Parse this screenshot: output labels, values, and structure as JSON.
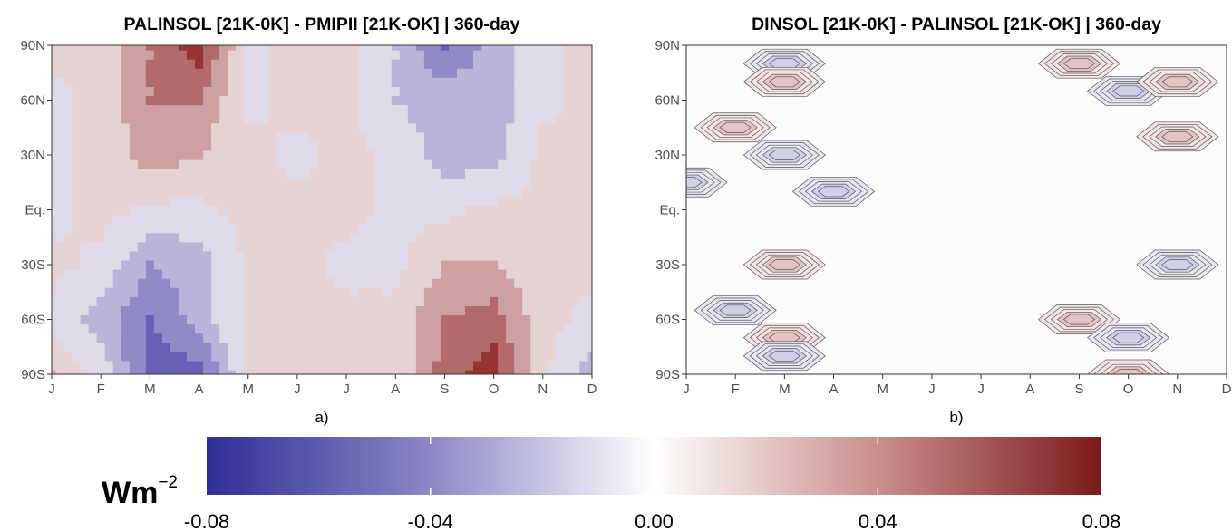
{
  "chart_data": [
    {
      "type": "heatmap",
      "panel": "a)",
      "title": "PALINSOL [21K-0K] - PMIPII [21K-OK] | 360-day",
      "x": [
        "J",
        "F",
        "M",
        "A",
        "M",
        "J",
        "J",
        "A",
        "S",
        "O",
        "N",
        "D"
      ],
      "y": [
        "90S",
        "60S",
        "30S",
        "Eq.",
        "30N",
        "60N",
        "90N"
      ],
      "levels": [
        -0.06,
        -0.04,
        -0.02,
        0,
        0.02,
        0.04,
        0.06
      ],
      "values": [
        [
          0.02,
          -0.005,
          -0.07,
          -0.07,
          0.005,
          0.005,
          0.005,
          0.005,
          0.05,
          0.07,
          0.005,
          -0.03
        ],
        [
          -0.005,
          -0.03,
          -0.06,
          -0.03,
          0.005,
          0.005,
          0.005,
          0.005,
          0.04,
          0.05,
          0.005,
          -0.005
        ],
        [
          0.005,
          -0.005,
          -0.04,
          -0.03,
          0.005,
          0.005,
          -0.005,
          -0.005,
          0.02,
          0.02,
          0.005,
          0.005
        ],
        [
          -0.005,
          0.005,
          -0.005,
          -0.005,
          0.005,
          0.005,
          0.005,
          -0.005,
          -0.005,
          0.005,
          0.005,
          0.005
        ],
        [
          -0.005,
          0.005,
          0.03,
          0.02,
          0.005,
          -0.005,
          0.005,
          -0.005,
          -0.03,
          -0.03,
          0.005,
          0.005
        ],
        [
          -0.005,
          0.005,
          0.04,
          0.04,
          -0.005,
          0.005,
          0.005,
          -0.02,
          -0.03,
          -0.03,
          -0.005,
          0.005
        ],
        [
          0.005,
          0.005,
          0.04,
          0.07,
          -0.005,
          0.005,
          0.005,
          -0.02,
          -0.06,
          -0.03,
          -0.005,
          0.005
        ]
      ]
    },
    {
      "type": "heatmap",
      "panel": "b)",
      "title": "DINSOL [21K-0K] - PALINSOL [21K-OK] | 360-day",
      "x": [
        "J",
        "F",
        "M",
        "A",
        "M",
        "J",
        "J",
        "A",
        "S",
        "O",
        "N",
        "D"
      ],
      "y": [
        "90S",
        "60S",
        "30S",
        "Eq.",
        "30N",
        "60N",
        "90N"
      ],
      "note": "near-zero field; localized contour features",
      "features": [
        {
          "month": "M",
          "lat": "80N",
          "value": -0.008
        },
        {
          "month": "M",
          "lat": "70N",
          "value": 0.008
        },
        {
          "month": "F",
          "lat": "45N",
          "value": 0.01
        },
        {
          "month": "M",
          "lat": "30N",
          "value": -0.008
        },
        {
          "month": "J",
          "lat": "15N",
          "value": -0.01
        },
        {
          "month": "A",
          "lat": "10N",
          "value": -0.008
        },
        {
          "month": "M",
          "lat": "30S",
          "value": 0.008
        },
        {
          "month": "F",
          "lat": "55S",
          "value": -0.01
        },
        {
          "month": "M",
          "lat": "70S",
          "value": 0.01
        },
        {
          "month": "M",
          "lat": "80S",
          "value": -0.008
        },
        {
          "month": "S",
          "lat": "80N",
          "value": 0.008
        },
        {
          "month": "O",
          "lat": "65N",
          "value": -0.01
        },
        {
          "month": "N",
          "lat": "70N",
          "value": 0.008
        },
        {
          "month": "N",
          "lat": "40N",
          "value": 0.008
        },
        {
          "month": "N",
          "lat": "30S",
          "value": -0.008
        },
        {
          "month": "S",
          "lat": "60S",
          "value": 0.008
        },
        {
          "month": "O",
          "lat": "70S",
          "value": -0.008
        },
        {
          "month": "O",
          "lat": "90S",
          "value": 0.008
        }
      ]
    }
  ],
  "colorbar": {
    "label_main": "Wm",
    "label_exp": "−2",
    "ticks": [
      "-0.08",
      "-0.04",
      "0.00",
      "0.04",
      "0.08"
    ],
    "min": -0.08,
    "max": 0.08,
    "colors": {
      "low": "#2b2b94",
      "mid": "#ffffff",
      "high": "#7a1a1a"
    }
  }
}
